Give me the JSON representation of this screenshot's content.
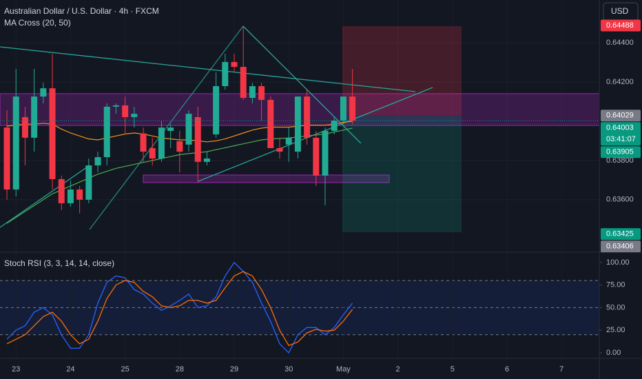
{
  "chart_data": [
    {
      "type": "candlestick",
      "title": "Australian Dollar / U.S. Dollar · 4h · FXCM",
      "subtitle": "MA Cross (20, 50)",
      "currency": "USD",
      "x": [
        0,
        1,
        2,
        3,
        4,
        5,
        6,
        7,
        8,
        9,
        10,
        11,
        12,
        13,
        14,
        15,
        16,
        17,
        18,
        19,
        20,
        21,
        22,
        23,
        24,
        25,
        26,
        27,
        28,
        29,
        30,
        31,
        32,
        33,
        34,
        35,
        36,
        37,
        38
      ],
      "open": [
        0.63968,
        0.63652,
        0.64021,
        0.63916,
        0.64126,
        0.64168,
        0.63705,
        0.63582,
        0.63652,
        0.636,
        0.63775,
        0.63817,
        0.64074,
        0.64081,
        0.64021,
        0.63938,
        0.63863,
        0.6381,
        0.63951,
        0.63898,
        0.63881,
        0.64021,
        0.63793,
        0.63933,
        0.64179,
        0.64302,
        0.64277,
        0.64119,
        0.64179,
        0.64109,
        0.63863,
        0.63881,
        0.63845,
        0.64126,
        0.63916,
        0.63723,
        0.63951,
        0.64003,
        0.64126
      ],
      "high": [
        0.64056,
        0.64267,
        0.64074,
        0.64267,
        0.64196,
        0.64344,
        0.63723,
        0.63698,
        0.6367,
        0.6381,
        0.63845,
        0.64091,
        0.64091,
        0.64126,
        0.64074,
        0.63968,
        0.63916,
        0.64003,
        0.63985,
        0.63951,
        0.64056,
        0.64074,
        0.63845,
        0.64249,
        0.64344,
        0.64344,
        0.64484,
        0.64196,
        0.64196,
        0.64126,
        0.63916,
        0.63968,
        0.64126,
        0.64161,
        0.63951,
        0.63968,
        0.64021,
        0.64126,
        0.64267
      ],
      "low": [
        0.636,
        0.63617,
        0.63775,
        0.63845,
        0.64091,
        0.63652,
        0.63547,
        0.63565,
        0.6353,
        0.63582,
        0.6374,
        0.63775,
        0.64038,
        0.63933,
        0.63968,
        0.63793,
        0.63775,
        0.63793,
        0.63863,
        0.6374,
        0.63845,
        0.63687,
        0.63775,
        0.63916,
        0.64161,
        0.64249,
        0.64109,
        0.64091,
        0.64003,
        0.63863,
        0.6381,
        0.63793,
        0.6381,
        0.63881,
        0.6367,
        0.63572,
        0.63933,
        0.63985,
        0.63985
      ],
      "close": [
        0.63652,
        0.64126,
        0.63916,
        0.64126,
        0.64168,
        0.63705,
        0.63582,
        0.63652,
        0.636,
        0.63775,
        0.63817,
        0.64074,
        0.64081,
        0.64021,
        0.64038,
        0.63845,
        0.6381,
        0.63968,
        0.63968,
        0.63845,
        0.64038,
        0.63793,
        0.6381,
        0.64179,
        0.64302,
        0.64277,
        0.64119,
        0.64179,
        0.64109,
        0.63863,
        0.63845,
        0.63916,
        0.64126,
        0.63916,
        0.63723,
        0.63951,
        0.64003,
        0.64126,
        0.64003
      ],
      "up_color": "#22ab94",
      "down_color": "#f23645",
      "series": [
        {
          "color": "#f7931a",
          "values": [
            0.63975,
            0.6398,
            0.63985,
            0.63985,
            0.6399,
            0.63985,
            0.6396,
            0.6394,
            0.63925,
            0.6391,
            0.63905,
            0.63915,
            0.63925,
            0.63935,
            0.6394,
            0.63935,
            0.63925,
            0.63915,
            0.6391,
            0.63905,
            0.63905,
            0.639,
            0.63895,
            0.639,
            0.6391,
            0.63925,
            0.6394,
            0.63955,
            0.63965,
            0.6397,
            0.6397,
            0.6397,
            0.63975,
            0.6398,
            0.6398,
            0.6398,
            0.63985,
            0.63995,
            0.64
          ]
        },
        {
          "color": "#4caf50",
          "values": [
            0.6348,
            0.6351,
            0.6354,
            0.6357,
            0.636,
            0.6363,
            0.6365,
            0.6367,
            0.6369,
            0.6371,
            0.6373,
            0.63745,
            0.6376,
            0.6377,
            0.6378,
            0.6379,
            0.638,
            0.6381,
            0.6382,
            0.6383,
            0.63835,
            0.6384,
            0.63845,
            0.63855,
            0.63865,
            0.63875,
            0.63885,
            0.63895,
            0.63905,
            0.6391,
            0.63912,
            0.63915,
            0.6392,
            0.63925,
            0.6393,
            0.63935,
            0.63945,
            0.63955,
            0.63965
          ]
        }
      ],
      "xlim": [
        -0.76,
        65.15
      ],
      "ylim": [
        0.63336,
        0.64618
      ],
      "yticks": [
        {
          "value": 0.636,
          "label": "0.63600"
        },
        {
          "value": 0.638,
          "label": "0.63800"
        },
        {
          "value": 0.642,
          "label": "0.64200"
        },
        {
          "value": 0.644,
          "label": "0.64400"
        }
      ],
      "price_labels": [
        {
          "value": 0.64488,
          "label": "0.64488",
          "color": "#f23645"
        },
        {
          "value": 0.64029,
          "label": "0.64029",
          "color": "#787b86"
        },
        {
          "value": 0.64003,
          "label": "0.64003",
          "color": "#089981"
        },
        {
          "value": 0.63905,
          "label": "0.63905",
          "color": "#089981"
        },
        {
          "value": 0.63425,
          "label": "0.63425",
          "color": "#089981"
        },
        {
          "value": 0.63406,
          "label": "0.63406",
          "color": "#787b86"
        }
      ],
      "countdown": "03:41:07"
    },
    {
      "type": "line",
      "title": "Stoch RSI (3, 3, 14, 14, close)",
      "x": [
        0,
        1,
        2,
        3,
        4,
        5,
        6,
        7,
        8,
        9,
        10,
        11,
        12,
        13,
        14,
        15,
        16,
        17,
        18,
        19,
        20,
        21,
        22,
        23,
        24,
        25,
        26,
        27,
        28,
        29,
        30,
        31,
        32,
        33,
        34,
        35,
        36,
        37,
        38
      ],
      "series": [
        {
          "color": "#2962ff",
          "values": [
            15,
            25,
            30,
            45,
            50,
            42,
            20,
            5,
            5,
            20,
            55,
            78,
            85,
            83,
            70,
            65,
            55,
            47,
            52,
            58,
            65,
            50,
            52,
            62,
            85,
            100,
            90,
            78,
            55,
            35,
            10,
            0,
            20,
            28,
            28,
            20,
            28,
            42,
            55
          ]
        },
        {
          "color": "#ff6d00",
          "values": [
            10,
            15,
            20,
            30,
            40,
            45,
            35,
            20,
            10,
            15,
            35,
            60,
            75,
            80,
            78,
            68,
            62,
            52,
            50,
            52,
            58,
            58,
            55,
            58,
            72,
            85,
            90,
            85,
            70,
            50,
            25,
            8,
            12,
            22,
            26,
            24,
            25,
            35,
            48
          ]
        }
      ],
      "levels": [
        80,
        50,
        20
      ],
      "xlim": [
        -0.76,
        65.15
      ],
      "ylim": [
        -6.1,
        109.8
      ],
      "yticks": [
        {
          "value": 100,
          "label": "100.00"
        },
        {
          "value": 75,
          "label": "75.00"
        },
        {
          "value": 50,
          "label": "50.00"
        },
        {
          "value": 25,
          "label": "25.00"
        },
        {
          "value": 0,
          "label": "0.00"
        }
      ],
      "xticks": [
        {
          "value": 1,
          "label": "23"
        },
        {
          "value": 7,
          "label": "24"
        },
        {
          "value": 13,
          "label": "25"
        },
        {
          "value": 19,
          "label": "28"
        },
        {
          "value": 25,
          "label": "29"
        },
        {
          "value": 31,
          "label": "30"
        },
        {
          "value": 37,
          "label": "May"
        },
        {
          "value": 43,
          "label": "2"
        },
        {
          "value": 49,
          "label": "5"
        },
        {
          "value": 55,
          "label": "6"
        },
        {
          "value": 61,
          "label": "7"
        }
      ]
    }
  ]
}
